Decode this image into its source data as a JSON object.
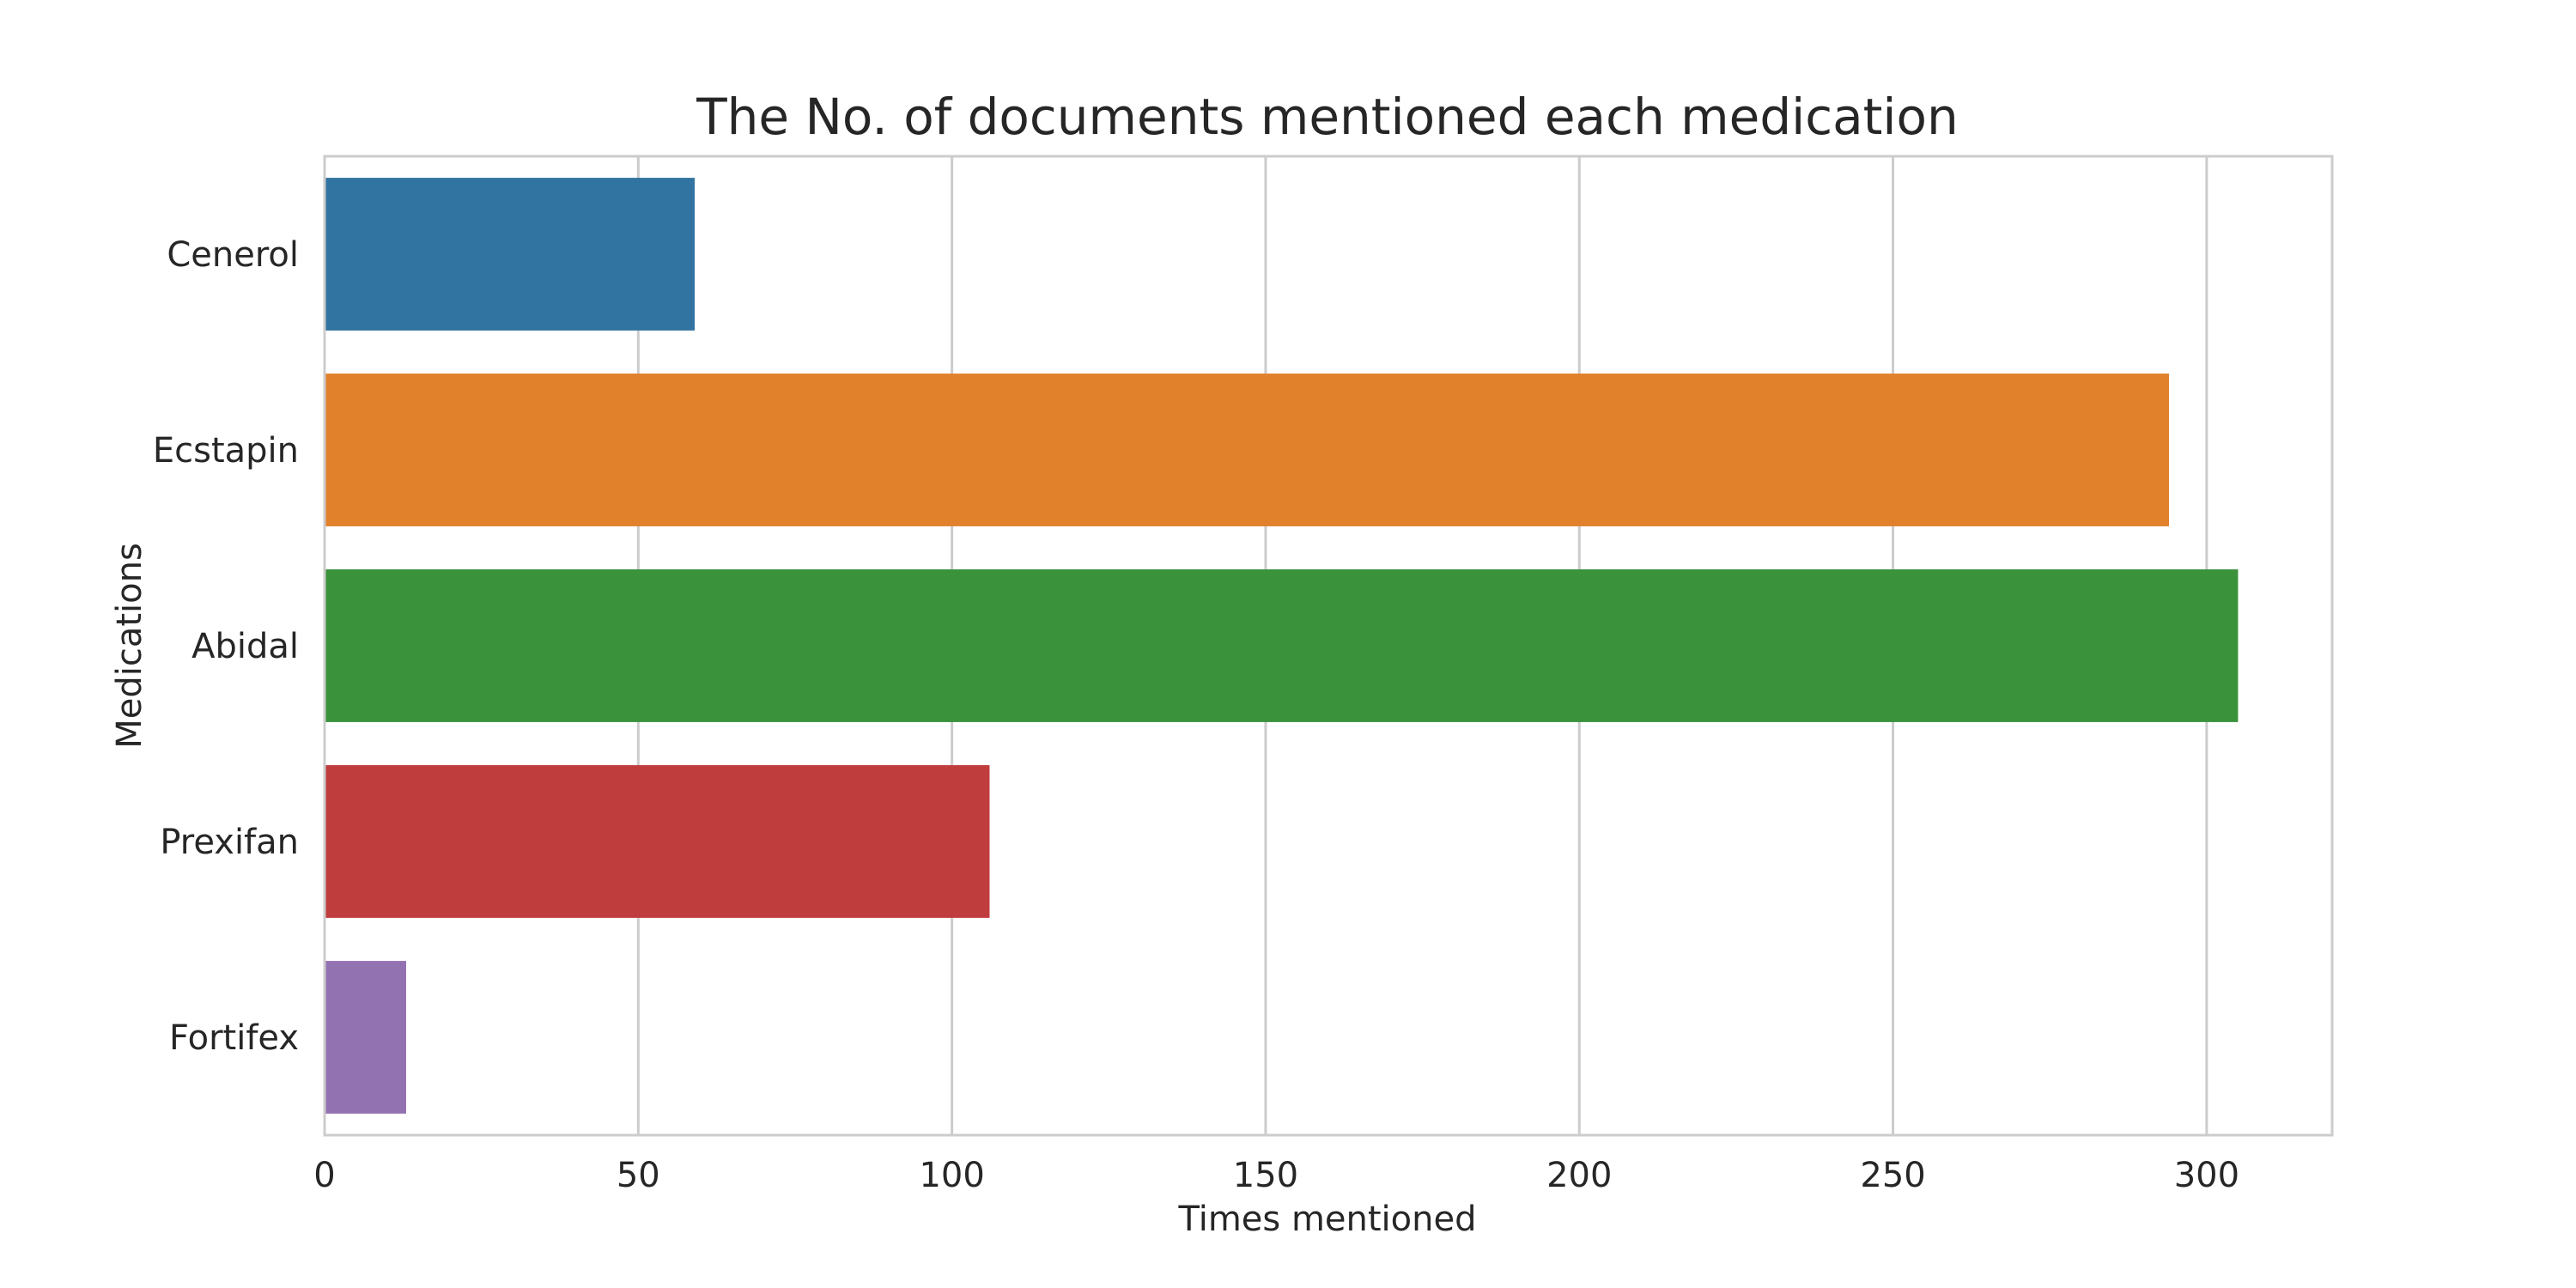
{
  "chart_data": {
    "type": "bar",
    "orientation": "horizontal",
    "title": "The No. of documents  mentioned each medication",
    "xlabel": "Times mentioned",
    "ylabel": "Medications",
    "categories": [
      "Cenerol",
      "Ecstapin",
      "Abidal",
      "Prexifan",
      "Fortifex"
    ],
    "values": [
      59,
      294,
      305,
      106,
      13
    ],
    "colors": [
      "#3274a1",
      "#e1812c",
      "#3a923a",
      "#c03d3e",
      "#9372b2"
    ],
    "xlim": [
      0,
      320
    ],
    "xticks": [
      0,
      50,
      100,
      150,
      200,
      250,
      300
    ],
    "xtick_labels": [
      "0",
      "50",
      "100",
      "150",
      "200",
      "250",
      "300"
    ],
    "grid": "vertical",
    "legend": "none"
  }
}
